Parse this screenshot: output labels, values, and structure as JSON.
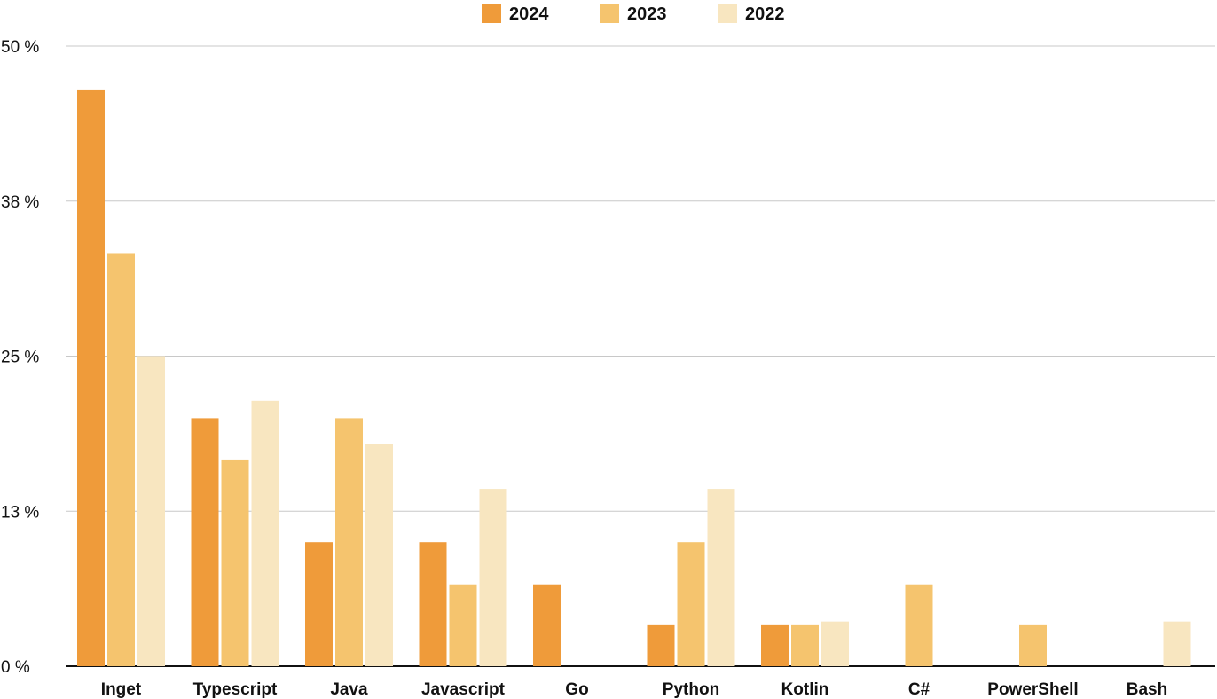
{
  "chart_data": {
    "type": "bar",
    "title": "",
    "xlabel": "",
    "ylabel": "",
    "categories": [
      "Inget",
      "Typescript",
      "Java",
      "Javascript",
      "Go",
      "Python",
      "Kotlin",
      "C#",
      "PowerShell",
      "Bash"
    ],
    "series": [
      {
        "name": "2024",
        "color": "#EF9B3A",
        "values": [
          46.5,
          20.0,
          10.0,
          10.0,
          6.6,
          3.3,
          3.3,
          0,
          0,
          0
        ]
      },
      {
        "name": "2023",
        "color": "#F5C46E",
        "values": [
          33.3,
          16.6,
          20.0,
          6.6,
          0,
          10.0,
          3.3,
          6.6,
          3.3,
          0
        ]
      },
      {
        "name": "2022",
        "color": "#F8E6C0",
        "values": [
          25.0,
          21.4,
          17.9,
          14.3,
          0,
          14.3,
          3.6,
          0,
          0,
          3.6
        ]
      }
    ],
    "ylim": [
      0,
      50
    ],
    "yticks": [
      0,
      12.5,
      25,
      37.5,
      50
    ],
    "ytick_labels": [
      "0 %",
      "13 %",
      "25 %",
      "38 %",
      "50 %"
    ],
    "grid": true,
    "legend_position": "top-center"
  }
}
